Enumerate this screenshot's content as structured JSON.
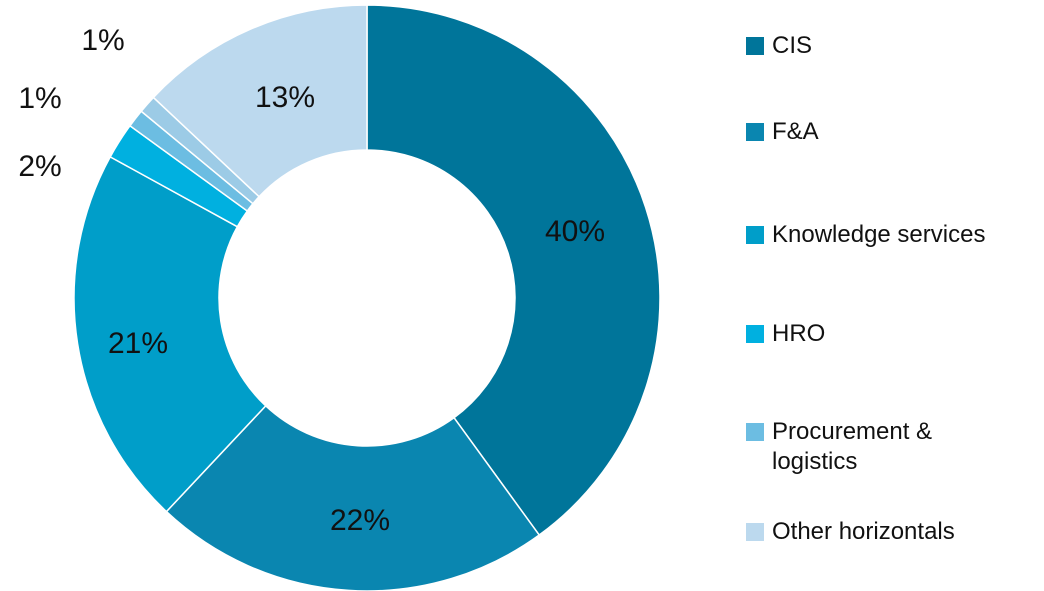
{
  "chart_data": {
    "type": "donut",
    "categories": [
      "CIS",
      "F&A",
      "Knowledge services",
      "HRO",
      "Procurement & logistics",
      null,
      "Other horizontals"
    ],
    "values": [
      40,
      22,
      21,
      2,
      1,
      1,
      13
    ],
    "value_labels": [
      "40%",
      "22%",
      "21%",
      "2%",
      "1%",
      "1%",
      "13%"
    ],
    "colors": [
      "#00759a",
      "#0a86b0",
      "#009ec9",
      "#00b0e0",
      "#6cbde2",
      "#9ccbe6",
      "#bcd9ee"
    ],
    "legend": "right"
  }
}
